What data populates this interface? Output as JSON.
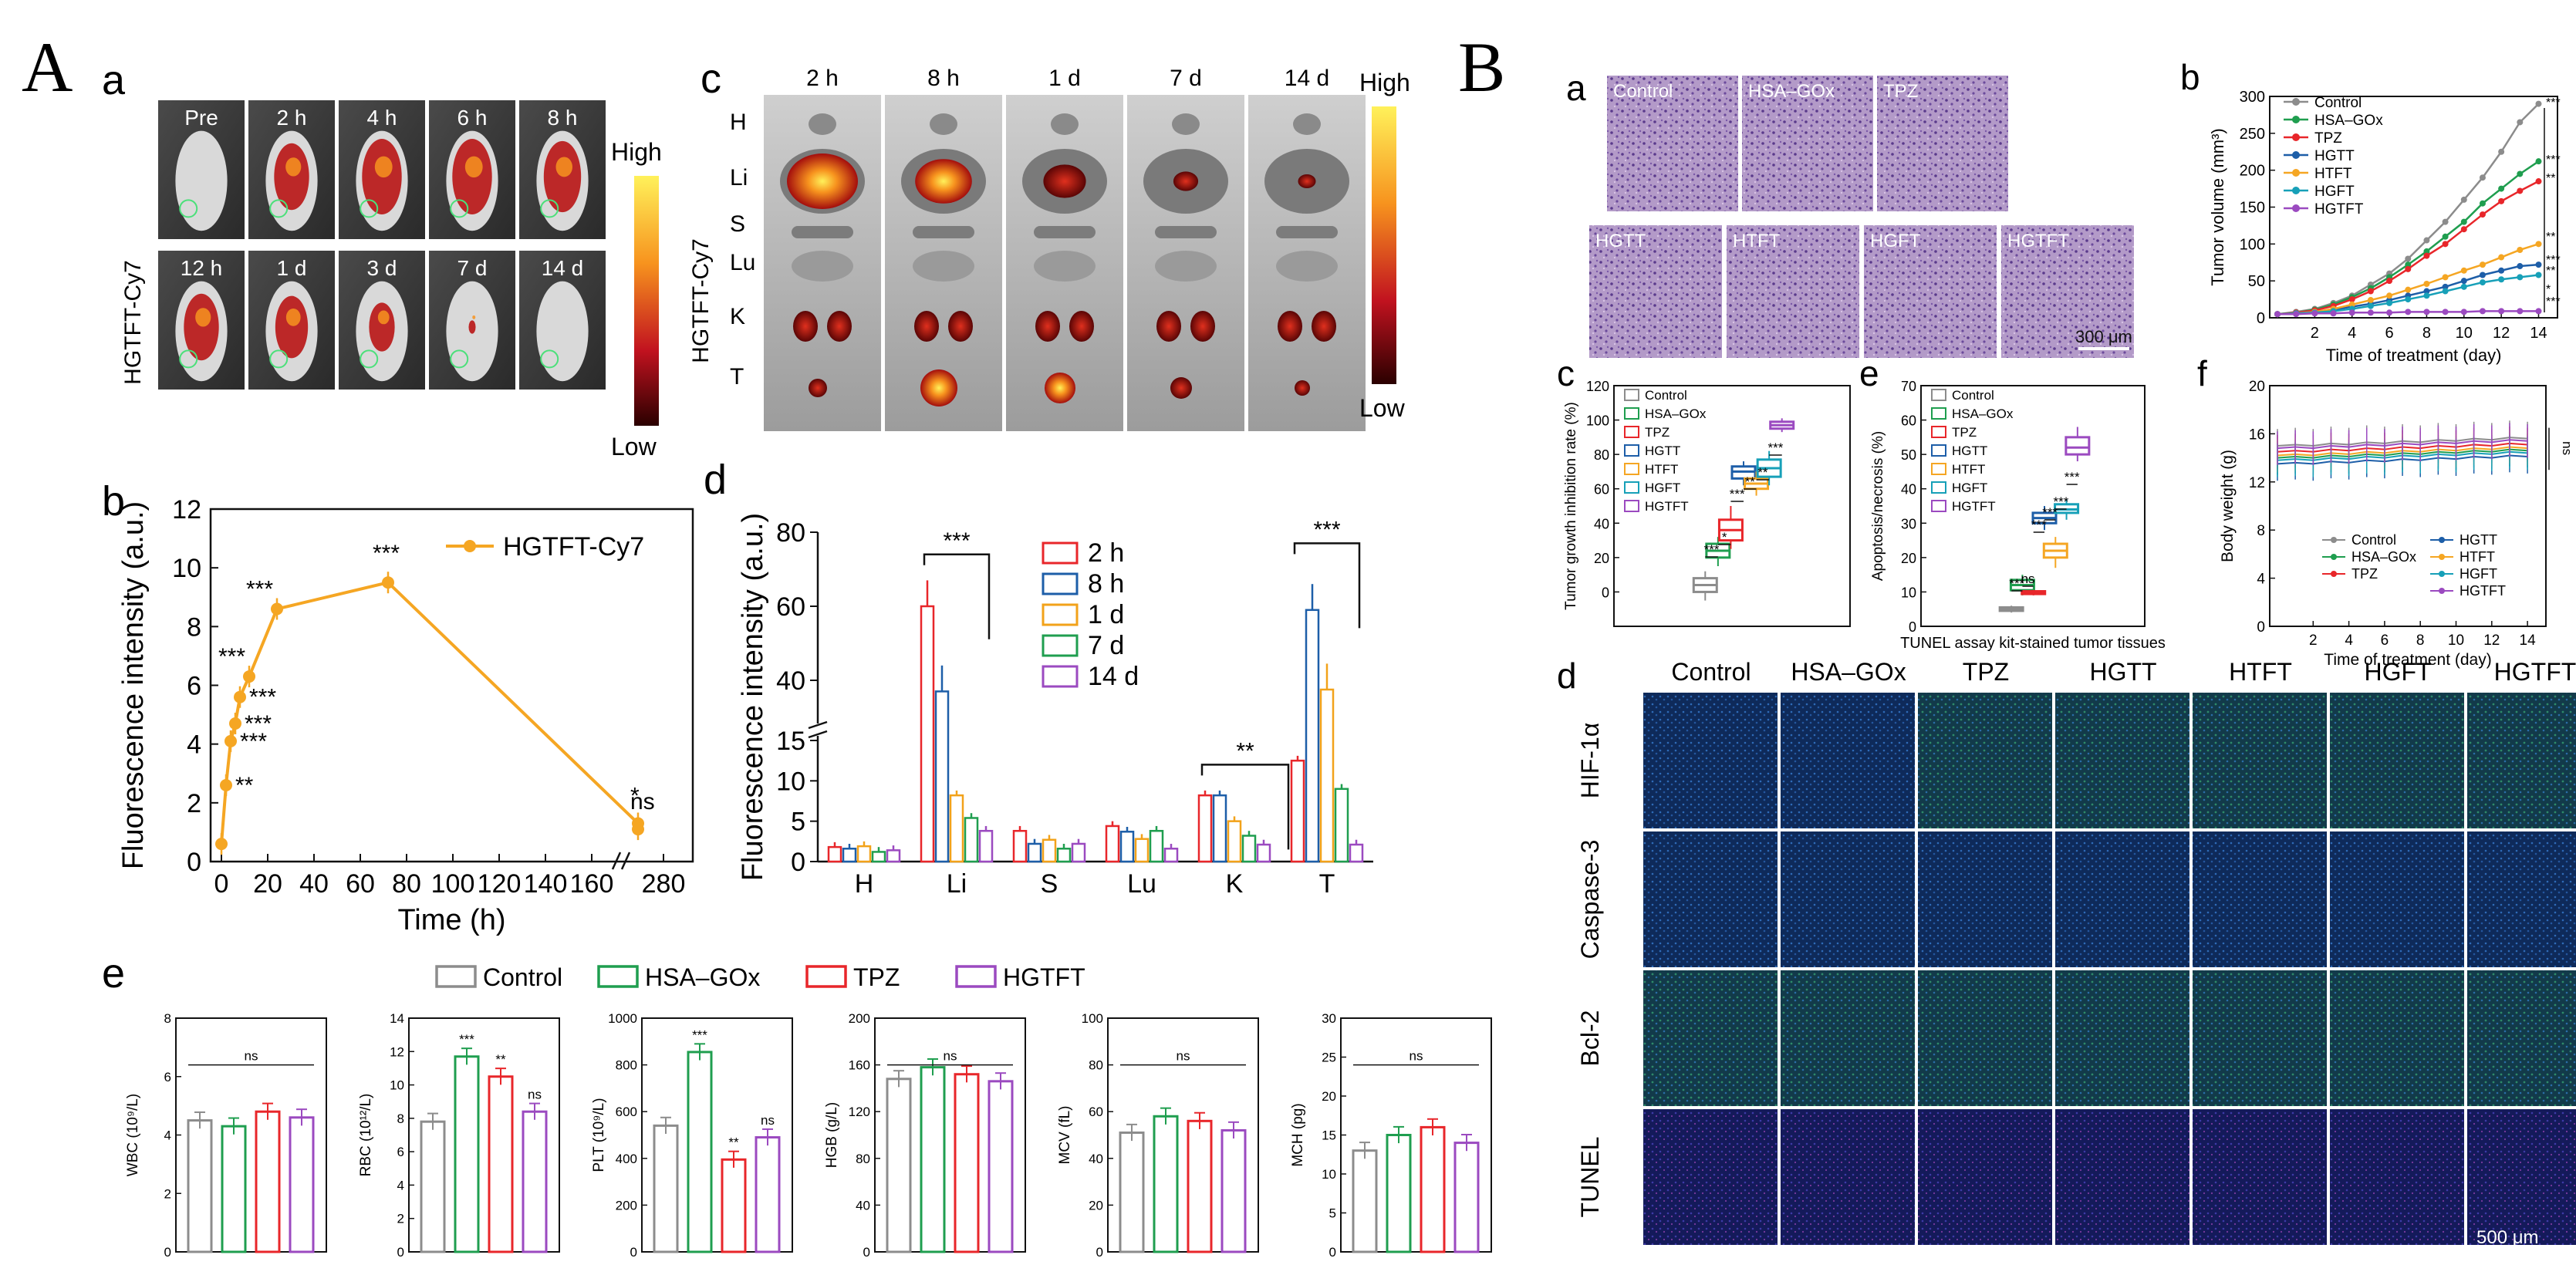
{
  "figure": {
    "panel_A_label": "A",
    "panel_B_label": "B"
  },
  "colors": {
    "c2h": "#e8262a",
    "c8h": "#1d5ea8",
    "c1d": "#f2a21a",
    "c7d": "#1f9e4f",
    "c14d": "#9b4ac0",
    "orange": "#f5a623",
    "control": "#8c8c8c",
    "hsagox": "#1f9e4f",
    "tpz": "#e8262a",
    "hgtt": "#1d5ea8",
    "htft": "#f5a623",
    "hgft": "#17a0b8",
    "hgtft": "#9b4ac0"
  },
  "A_a": {
    "sub_label": "a",
    "side_label": "HGTFT-Cy7",
    "row1": [
      "Pre",
      "2 h",
      "4 h",
      "6 h",
      "8 h"
    ],
    "row2": [
      "12 h",
      "1 d",
      "3 d",
      "7 d",
      "14 d"
    ],
    "colorbar_high": "High",
    "colorbar_low": "Low"
  },
  "A_c": {
    "sub_label": "c",
    "side_label": "HGTFT-Cy7",
    "times": [
      "2 h",
      "8 h",
      "1 d",
      "7 d",
      "14 d"
    ],
    "organs": [
      "H",
      "Li",
      "S",
      "Lu",
      "K",
      "T"
    ],
    "colorbar_high": "High",
    "colorbar_low": "Low"
  },
  "B_a": {
    "sub_label": "a",
    "row1": [
      "Control",
      "HSA–GOx",
      "TPZ"
    ],
    "row2": [
      "HGTT",
      "HTFT",
      "HGFT",
      "HGTFT"
    ],
    "scalebar": "300 μm"
  },
  "B_d": {
    "sub_label": "d",
    "columns": [
      "Control",
      "HSA–GOx",
      "TPZ",
      "HGTT",
      "HTFT",
      "HGFT",
      "HGTFT"
    ],
    "rows": [
      "HIF-1α",
      "Caspase-3",
      "Bcl-2",
      "TUNEL"
    ],
    "scalebar": "500 μm"
  },
  "chart_data": [
    {
      "id": "A_b",
      "type": "line",
      "sub_label": "b",
      "xlabel": "Time (h)",
      "ylabel": "Fluorescence intensity (a.u.)",
      "ylim": [
        0,
        12
      ],
      "yticks": [
        0,
        2,
        4,
        6,
        8,
        10,
        12
      ],
      "xticks": [
        "0",
        "20",
        "40",
        "60",
        "80",
        "100",
        "120",
        "140",
        "160",
        "280"
      ],
      "series": [
        {
          "name": "HGTFT-Cy7",
          "x": [
            0,
            2,
            4,
            6,
            8,
            12,
            24,
            72,
            168,
            336
          ],
          "y": [
            0.6,
            2.6,
            4.1,
            4.7,
            5.6,
            6.3,
            8.6,
            9.5,
            1.3,
            1.1
          ],
          "sig": [
            "",
            "**",
            "***",
            "***",
            "***",
            "***",
            "***",
            "***",
            "*",
            "ns"
          ]
        }
      ]
    },
    {
      "id": "A_d",
      "type": "bar",
      "sub_label": "d",
      "ylabel": "Fluorescence intensity (a.u.)",
      "yticks_low": [
        0,
        5,
        10,
        15
      ],
      "yticks_high": [
        40,
        60,
        80
      ],
      "categories": [
        "H",
        "Li",
        "S",
        "Lu",
        "K",
        "T"
      ],
      "series": [
        {
          "name": "2 h",
          "values": [
            1.8,
            60,
            3.8,
            4.4,
            8.2,
            12.5
          ]
        },
        {
          "name": "8 h",
          "values": [
            1.6,
            37,
            2.2,
            3.7,
            8.2,
            59
          ]
        },
        {
          "name": "1 d",
          "values": [
            1.9,
            8.2,
            2.7,
            2.8,
            5.0,
            37.5
          ]
        },
        {
          "name": "7 d",
          "values": [
            1.2,
            5.4,
            1.6,
            3.8,
            3.2,
            9.0
          ]
        },
        {
          "name": "14 d",
          "values": [
            1.4,
            3.8,
            2.2,
            1.6,
            2.1,
            2.1
          ]
        }
      ],
      "sig": [
        {
          "cat": "Li",
          "label": "***"
        },
        {
          "cat": "K",
          "label": "**"
        },
        {
          "cat": "T",
          "label": "***"
        }
      ]
    },
    {
      "id": "A_e",
      "type": "bar",
      "sub_label": "e",
      "legend": [
        "Control",
        "HSA–GOx",
        "TPZ",
        "HGTFT"
      ],
      "panels": [
        {
          "ylabel": "WBC (10⁹/L)",
          "ylim": [
            0,
            8
          ],
          "yticks": [
            0,
            2,
            4,
            6,
            8
          ],
          "values": [
            4.5,
            4.3,
            4.8,
            4.6
          ],
          "sig": [
            "",
            "",
            "",
            ""
          ],
          "bracket": "ns"
        },
        {
          "ylabel": "RBC (10¹²/L)",
          "ylim": [
            0,
            14
          ],
          "yticks": [
            0,
            2,
            4,
            6,
            8,
            10,
            12,
            14
          ],
          "values": [
            7.8,
            11.7,
            10.5,
            8.4
          ],
          "sig": [
            "",
            "***",
            "**",
            "ns"
          ],
          "bracket": ""
        },
        {
          "ylabel": "PLT (10⁹/L)",
          "ylim": [
            0,
            1000
          ],
          "yticks": [
            0,
            200,
            400,
            600,
            800,
            1000
          ],
          "values": [
            540,
            855,
            395,
            490
          ],
          "sig": [
            "",
            "***",
            "**",
            "ns"
          ],
          "bracket": ""
        },
        {
          "ylabel": "HGB (g/L)",
          "ylim": [
            0,
            200
          ],
          "yticks": [
            0,
            40,
            80,
            120,
            160,
            200
          ],
          "values": [
            148,
            158,
            152,
            146
          ],
          "sig": [
            "",
            "",
            "",
            ""
          ],
          "bracket": "ns"
        },
        {
          "ylabel": "MCV (fL)",
          "ylim": [
            0,
            100
          ],
          "yticks": [
            0,
            20,
            40,
            60,
            80,
            100
          ],
          "values": [
            51,
            58,
            56,
            52
          ],
          "sig": [
            "",
            "",
            "",
            ""
          ],
          "bracket": "ns"
        },
        {
          "ylabel": "MCH (pg)",
          "ylim": [
            0,
            30
          ],
          "yticks": [
            0,
            5,
            10,
            15,
            20,
            25,
            30
          ],
          "values": [
            13,
            15,
            16,
            14
          ],
          "sig": [
            "",
            "",
            "",
            ""
          ],
          "bracket": "ns"
        }
      ]
    },
    {
      "id": "B_b",
      "type": "line",
      "sub_label": "b",
      "xlabel": "Time of treatment (day)",
      "ylabel": "Tumor volume (mm³)",
      "ylim": [
        0,
        300
      ],
      "yticks": [
        0,
        50,
        100,
        150,
        200,
        250,
        300
      ],
      "xticks": [
        2,
        4,
        6,
        8,
        10,
        12,
        14
      ],
      "x": [
        0,
        1,
        2,
        3,
        4,
        5,
        6,
        7,
        8,
        9,
        10,
        11,
        12,
        13,
        14
      ],
      "series": [
        {
          "name": "Control",
          "y": [
            5,
            8,
            12,
            20,
            30,
            45,
            60,
            80,
            105,
            130,
            160,
            190,
            225,
            265,
            290
          ]
        },
        {
          "name": "HSA–GOx",
          "y": [
            5,
            7,
            11,
            18,
            28,
            40,
            55,
            72,
            90,
            110,
            130,
            155,
            175,
            195,
            212
          ]
        },
        {
          "name": "TPZ",
          "y": [
            5,
            7,
            10,
            16,
            25,
            36,
            50,
            66,
            84,
            100,
            120,
            140,
            158,
            172,
            185
          ]
        },
        {
          "name": "HGTT",
          "y": [
            5,
            6,
            8,
            11,
            15,
            19,
            24,
            30,
            36,
            42,
            50,
            58,
            64,
            70,
            72
          ]
        },
        {
          "name": "HTFT",
          "y": [
            5,
            6,
            8,
            12,
            18,
            24,
            30,
            38,
            46,
            55,
            64,
            72,
            82,
            92,
            100
          ]
        },
        {
          "name": "HGFT",
          "y": [
            5,
            6,
            7,
            9,
            12,
            16,
            20,
            25,
            30,
            36,
            42,
            48,
            52,
            55,
            58
          ]
        },
        {
          "name": "HGTFT",
          "y": [
            5,
            5,
            6,
            6,
            7,
            7,
            7,
            8,
            8,
            8,
            8,
            9,
            9,
            9,
            9
          ]
        }
      ],
      "sig": [
        "***",
        "***",
        "**",
        "**",
        "***",
        "**",
        "*",
        "***"
      ]
    },
    {
      "id": "B_c",
      "type": "box",
      "sub_label": "c",
      "ylabel": "Tumor growth inhibition rate (%)",
      "ylim": [
        -20,
        120
      ],
      "yticks": [
        0,
        20,
        40,
        60,
        80,
        100,
        120
      ],
      "groups": [
        "Control",
        "HSA–GOx",
        "TPZ",
        "HGTT",
        "HTFT",
        "HGFT",
        "HGTFT"
      ],
      "box": [
        [
          -5,
          0,
          4,
          8,
          12
        ],
        [
          15,
          20,
          24,
          28,
          32
        ],
        [
          25,
          30,
          36,
          42,
          50
        ],
        [
          62,
          66,
          70,
          73,
          76
        ],
        [
          56,
          60,
          63,
          66,
          70
        ],
        [
          62,
          67,
          72,
          77,
          82
        ],
        [
          93,
          95,
          97,
          99,
          101
        ]
      ],
      "sig": [
        "***",
        "*",
        "***",
        "**",
        "**",
        "***"
      ]
    },
    {
      "id": "B_e",
      "type": "box",
      "sub_label": "e",
      "ylabel": "Apoptosis/necrosis (%)",
      "xlabel": "TUNEL assay kit-stained tumor tissues",
      "ylim": [
        0,
        70
      ],
      "yticks": [
        0,
        10,
        20,
        30,
        40,
        50,
        60,
        70
      ],
      "groups": [
        "Control",
        "HSA–GOx",
        "TPZ",
        "HGTT",
        "HTFT",
        "HGFT",
        "HGTFT"
      ],
      "box": [
        [
          4,
          4.5,
          5,
          5.5,
          6
        ],
        [
          9,
          10.5,
          12,
          13.5,
          15
        ],
        [
          9,
          9.4,
          9.8,
          10.2,
          10.6
        ],
        [
          28,
          30,
          31.5,
          33,
          35
        ],
        [
          17,
          20,
          22,
          24,
          26
        ],
        [
          31,
          33,
          34,
          35.5,
          37
        ],
        [
          48,
          50,
          52,
          55,
          58
        ]
      ],
      "sig": [
        "***",
        "ns",
        "***",
        "***",
        "***",
        "***"
      ]
    },
    {
      "id": "B_f",
      "type": "line",
      "sub_label": "f",
      "xlabel": "Time of treatment (day)",
      "ylabel": "Body weight (g)",
      "ylim": [
        0,
        20
      ],
      "yticks": [
        0,
        4,
        8,
        12,
        16,
        20
      ],
      "xticks": [
        2,
        4,
        6,
        8,
        10,
        12,
        14
      ],
      "x": [
        0,
        1,
        2,
        3,
        4,
        5,
        6,
        7,
        8,
        9,
        10,
        11,
        12,
        13,
        14
      ],
      "series": [
        {
          "name": "Control",
          "y": [
            15,
            15.1,
            15.0,
            15.2,
            15.1,
            15.3,
            15.2,
            15.4,
            15.3,
            15.5,
            15.4,
            15.6,
            15.5,
            15.7,
            15.6
          ]
        },
        {
          "name": "HSA–GOx",
          "y": [
            14,
            14.1,
            14.0,
            14.2,
            14.1,
            14.3,
            14.2,
            14.4,
            14.3,
            14.5,
            14.4,
            14.6,
            14.5,
            14.7,
            14.6
          ]
        },
        {
          "name": "TPZ",
          "y": [
            14.5,
            14.6,
            14.5,
            14.7,
            14.6,
            14.8,
            14.7,
            14.9,
            14.8,
            15.0,
            14.9,
            15.1,
            15.0,
            15.2,
            15.1
          ]
        },
        {
          "name": "HGTT",
          "y": [
            13.5,
            13.6,
            13.5,
            13.7,
            13.6,
            13.8,
            13.7,
            13.9,
            13.8,
            14.0,
            13.9,
            14.1,
            14.0,
            14.2,
            14.1
          ]
        },
        {
          "name": "HTFT",
          "y": [
            14.2,
            14.3,
            14.2,
            14.4,
            14.3,
            14.5,
            14.4,
            14.6,
            14.5,
            14.7,
            14.6,
            14.8,
            14.7,
            14.9,
            14.8
          ]
        },
        {
          "name": "HGFT",
          "y": [
            13.8,
            13.9,
            13.8,
            14.0,
            13.9,
            14.1,
            14.0,
            14.2,
            14.1,
            14.3,
            14.2,
            14.4,
            14.3,
            14.5,
            14.4
          ]
        },
        {
          "name": "HGTFT",
          "y": [
            14.8,
            14.9,
            14.8,
            15.0,
            14.9,
            15.1,
            15.0,
            15.2,
            15.1,
            15.3,
            15.2,
            15.4,
            15.3,
            15.5,
            15.4
          ]
        }
      ],
      "sig": "ns"
    }
  ]
}
